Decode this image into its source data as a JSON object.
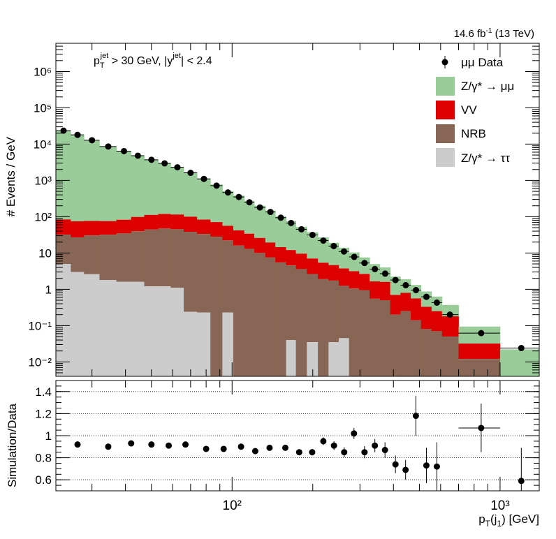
{
  "chart_data": [
    {
      "type": "bar",
      "panel": "main",
      "title": "14.6 fb-1 (13 TeV)",
      "lumi": {
        "value": "14.6 fb",
        "sup": "-1",
        "suffix": " (13 TeV)"
      },
      "cut_label": {
        "p": "p",
        "sub": "T",
        "sup": "jet",
        "mid": " > 30 GeV,  |y",
        "sup2": "jet",
        "end": "| < 2.4"
      },
      "xlabel": "p_T(j_1) [GeV]",
      "ylabel": "# Events / GeV",
      "xscale": "log",
      "yscale": "log",
      "xlim": [
        22,
        1400
      ],
      "ylim": [
        0.004,
        6000000
      ],
      "ytick_labels": [
        "10⁻²",
        "10⁻¹",
        "1",
        "10",
        "10²",
        "10³",
        "10⁴",
        "10⁵",
        "10⁶"
      ],
      "ytick_values": [
        0.01,
        0.1,
        1,
        10,
        100,
        1000,
        10000,
        100000,
        1000000
      ],
      "bin_edges": [
        22,
        25,
        28,
        32,
        37,
        42,
        47,
        53,
        59,
        66,
        74,
        83,
        92,
        101,
        111,
        121,
        133,
        145,
        159,
        173,
        190,
        209,
        229,
        250,
        273,
        298,
        326,
        356,
        389,
        425,
        464,
        507,
        555,
        607,
        700,
        1000,
        1400
      ],
      "stack": {
        "tautau": [
          5,
          3,
          2.6,
          1.8,
          1.6,
          1.6,
          1.2,
          1.2,
          1.1,
          0.24,
          0.23,
          0,
          0.23,
          0,
          0,
          0,
          0,
          0,
          0.04,
          0,
          0.035,
          0,
          0.035,
          0.045,
          0,
          0,
          0,
          0,
          0,
          0,
          0,
          0,
          0,
          0,
          0,
          0
        ],
        "nrb": [
          27,
          24,
          28,
          30,
          33,
          38,
          43,
          46,
          44,
          38,
          33,
          28,
          22,
          16,
          13,
          10,
          7.5,
          5.5,
          4.5,
          3.6,
          2.6,
          1.9,
          1.7,
          1.2,
          1.05,
          0.95,
          0.55,
          0.5,
          0.2,
          0.25,
          0.14,
          0.08,
          0.07,
          0.05,
          0.012,
          0
        ],
        "vv": [
          52,
          48,
          46,
          44,
          48,
          59,
          68,
          72,
          70,
          62,
          50,
          43,
          34,
          26,
          21,
          16,
          12,
          9,
          7.5,
          6,
          4.4,
          3.5,
          2.9,
          2.5,
          2.1,
          1.7,
          1.1,
          1.1,
          0.5,
          0.55,
          0.42,
          0.25,
          0.18,
          0.13,
          0.02,
          0
        ],
        "dy": [
          23000,
          17500,
          12500,
          8500,
          6300,
          4700,
          3550,
          2900,
          2250,
          1580,
          1050,
          700,
          450,
          340,
          240,
          175,
          128,
          88,
          64,
          43,
          30,
          21.5,
          14.5,
          10.2,
          7.2,
          4.9,
          3.3,
          2.4,
          1.55,
          1.1,
          0.76,
          0.54,
          0.38,
          0.19,
          0.062,
          0.022
        ]
      },
      "data_points": {
        "x": [
          23.5,
          26.5,
          30,
          34.5,
          39.5,
          44.5,
          50,
          56,
          62.5,
          70,
          78.5,
          87.5,
          96.5,
          106,
          116,
          127,
          139,
          152,
          166,
          181.5,
          199.5,
          219,
          239.5,
          261.5,
          285.5,
          312,
          341,
          372.5,
          407,
          444.5,
          485.5,
          531,
          581,
          650,
          850,
          1200
        ],
        "y": [
          23500,
          18000,
          12800,
          8600,
          6400,
          4800,
          3700,
          2950,
          2300,
          1620,
          1100,
          720,
          465,
          350,
          250,
          180,
          135,
          94,
          67,
          45,
          31.5,
          22,
          15.5,
          11,
          7.8,
          5.3,
          3.6,
          2.7,
          1.8,
          1.3,
          0.95,
          0.62,
          0.43,
          0.2,
          0.062,
          0.024
        ]
      },
      "legend": [
        {
          "label": "μμ Data",
          "marker": "point"
        },
        {
          "label": "Z/γ* → μμ",
          "color": "#99cc99"
        },
        {
          "label": "VV",
          "color": "#dd0000"
        },
        {
          "label": "NRB",
          "color": "#886655"
        },
        {
          "label": "Z/γ* → ττ",
          "color": "#cccccc"
        }
      ],
      "legend_placement": "top-right"
    },
    {
      "type": "scatter",
      "panel": "ratio",
      "xlabel": "p_T(j_1) [GeV]",
      "ylabel": "Simulation/Data",
      "xscale": "log",
      "ylim": [
        0.5,
        1.5
      ],
      "yticks": [
        "0.6",
        "0.8",
        "1",
        "1.2",
        "1.4"
      ],
      "xtick_labels": [
        "10²",
        "10³"
      ],
      "grid": "horizontal dotted",
      "points": {
        "x": [
          26.5,
          34.5,
          42,
          50,
          58,
          67,
          80,
          93,
          108,
          122,
          138,
          158,
          178,
          199,
          219,
          240,
          262,
          285,
          312,
          341,
          372,
          407,
          444,
          485,
          531,
          581,
          850,
          1200
        ],
        "y": [
          0.92,
          0.9,
          0.93,
          0.92,
          0.91,
          0.92,
          0.88,
          0.88,
          0.9,
          0.86,
          0.89,
          0.89,
          0.85,
          0.85,
          0.95,
          0.91,
          0.85,
          1.02,
          0.85,
          0.91,
          0.87,
          0.74,
          0.69,
          1.18,
          0.73,
          0.72,
          1.07,
          0.59
        ],
        "yerr": [
          0.015,
          0.015,
          0.015,
          0.015,
          0.015,
          0.015,
          0.015,
          0.015,
          0.02,
          0.02,
          0.02,
          0.02,
          0.025,
          0.03,
          0.035,
          0.04,
          0.045,
          0.05,
          0.055,
          0.06,
          0.07,
          0.08,
          0.09,
          0.18,
          0.16,
          0.22,
          0.22,
          0.3
        ],
        "xerr": [
          0,
          0,
          0,
          0,
          0,
          0,
          0,
          0,
          0,
          0,
          0,
          0,
          0,
          0,
          0,
          0,
          0,
          0,
          0,
          0,
          0,
          0,
          0,
          0,
          0,
          0,
          150,
          0
        ]
      }
    }
  ]
}
